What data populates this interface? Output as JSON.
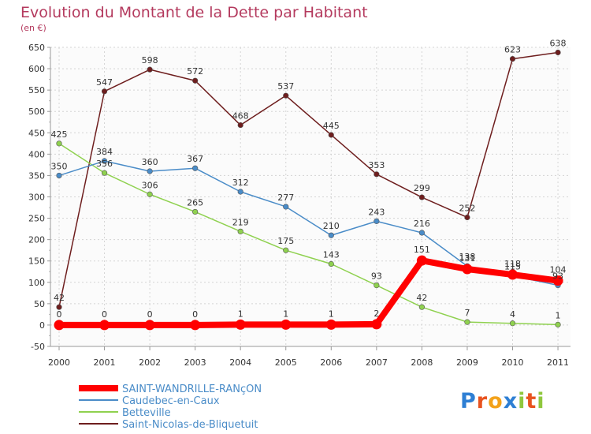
{
  "chart_data": {
    "type": "line",
    "title": "Evolution du Montant de la Dette par Habitant",
    "subtitle": "(en €)",
    "x": [
      "2000",
      "2001",
      "2002",
      "2003",
      "2004",
      "2005",
      "2006",
      "2007",
      "2008",
      "2009",
      "2010",
      "2011"
    ],
    "ylim": [
      -50,
      650
    ],
    "yticks": [
      -50,
      0,
      50,
      100,
      150,
      200,
      250,
      300,
      350,
      400,
      450,
      500,
      550,
      600,
      650
    ],
    "grid": true,
    "legend_position": "bottom-left",
    "series": [
      {
        "name": "Saint-Nicolas-de-Bliquetuit",
        "color": "#6e1e1e",
        "values": [
          42,
          547,
          598,
          572,
          468,
          537,
          445,
          353,
          299,
          252,
          623,
          638
        ],
        "labels": [
          "42",
          "547",
          "598",
          "572",
          "468",
          "537",
          "445",
          "353",
          "299",
          "252",
          "623",
          "638"
        ]
      },
      {
        "name": "Betteville",
        "color": "#8fd14f",
        "values": [
          425,
          356,
          306,
          265,
          219,
          175,
          143,
          93,
          42,
          7,
          4,
          1
        ],
        "labels": [
          "425",
          "356",
          "306",
          "265",
          "219",
          "175",
          "143",
          "93",
          "42",
          "7",
          "4",
          "1"
        ]
      },
      {
        "name": "Caudebec-en-Caux",
        "color": "#4a8cc8",
        "values": [
          350,
          384,
          360,
          367,
          312,
          277,
          210,
          243,
          216,
          138,
          115,
          93
        ],
        "labels": [
          "350",
          "384",
          "360",
          "367",
          "312",
          "277",
          "210",
          "243",
          "216",
          "138",
          "115",
          "93"
        ]
      },
      {
        "name": "SAINT-WANDRILLE-RANçON",
        "color": "#ff0000",
        "values": [
          0,
          0,
          0,
          0,
          1,
          1,
          1,
          2,
          151,
          131,
          118,
          104
        ],
        "labels": [
          "0",
          "0",
          "0",
          "0",
          "1",
          "1",
          "1",
          "2",
          "151",
          "131",
          "118",
          "104"
        ]
      }
    ],
    "legend": [
      "SAINT-WANDRILLE-RANçON",
      "Caudebec-en-Caux",
      "Betteville",
      "Saint-Nicolas-de-Bliquetuit"
    ]
  },
  "logo": {
    "text": "Proxiti"
  }
}
